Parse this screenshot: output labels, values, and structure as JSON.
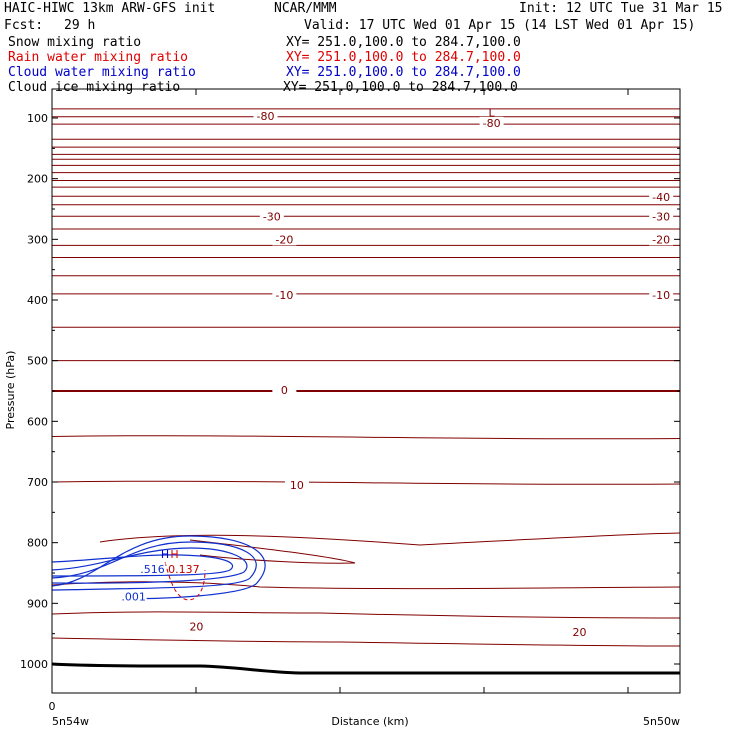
{
  "header": {
    "model": "HAIC-HIWC 13km ARW-GFS init",
    "org": "NCAR/MMM",
    "init": "Init: 12 UTC Tue 31 Mar 15",
    "fcst_label": "Fcst:",
    "fcst_value": "29 h",
    "valid": "Valid: 17 UTC Wed 01 Apr 15 (14 LST Wed 01 Apr 15)"
  },
  "fields": [
    {
      "name": "Snow mixing ratio",
      "xy": "XY= 251.0,100.0 to 284.7,100.0",
      "color": "#000000"
    },
    {
      "name": "Rain water mixing ratio",
      "xy": "XY= 251.0,100.0 to 284.7,100.0",
      "color": "#e00000"
    },
    {
      "name": "Cloud water mixing ratio",
      "xy": "XY= 251.0,100.0 to 284.7,100.0",
      "color": "#0000c8"
    },
    {
      "name": "Cloud ice mixing ratio",
      "xy": "XY= 251.0,100.0 to 284.7,100.0",
      "color": "#000000"
    }
  ],
  "chart_data": {
    "type": "contour",
    "ylabel": "Pressure (hPa)",
    "xlabel": "Distance (km)",
    "y_ticks": [
      100,
      200,
      300,
      400,
      500,
      600,
      700,
      800,
      900,
      1000
    ],
    "ylim": [
      1050,
      50
    ],
    "x_start_tick": "0",
    "x_left_label": "5n54w",
    "x_right_label": "5n50w",
    "temperature_color": "#800000",
    "temperature_levels_hpa": [
      85,
      98,
      110,
      135,
      148,
      160,
      168,
      178,
      190,
      203,
      214,
      229,
      243,
      262,
      283,
      310,
      330,
      360,
      390,
      445,
      500,
      550,
      625,
      700
    ],
    "temperature_labels": [
      {
        "text": "-80",
        "p": 97,
        "x_frac": 0.34
      },
      {
        "text": "-80",
        "p": 108,
        "x_frac": 0.7
      },
      {
        "text": "-40",
        "p": 230,
        "x_frac": 0.97
      },
      {
        "text": "-30",
        "p": 262,
        "x_frac": 0.35
      },
      {
        "text": "-30",
        "p": 262,
        "x_frac": 0.97
      },
      {
        "text": "-20",
        "p": 300,
        "x_frac": 0.37
      },
      {
        "text": "-20",
        "p": 300,
        "x_frac": 0.97
      },
      {
        "text": "-10",
        "p": 392,
        "x_frac": 0.37
      },
      {
        "text": "-10",
        "p": 392,
        "x_frac": 0.97
      },
      {
        "text": "0",
        "p": 548,
        "x_frac": 0.37
      },
      {
        "text": "10",
        "p": 705,
        "x_frac": 0.39
      },
      {
        "text": "20",
        "p": 938,
        "x_frac": 0.23
      },
      {
        "text": "20",
        "p": 947,
        "x_frac": 0.84
      }
    ],
    "markers": [
      {
        "text": "L",
        "p": 91,
        "x_frac": 0.7,
        "color": "#800000"
      },
      {
        "text": "H",
        "p": 819,
        "x_frac": 0.18,
        "color": "#0000c8"
      },
      {
        "text": "H",
        "p": 819,
        "x_frac": 0.195,
        "color": "#e00000"
      }
    ],
    "cloud_water_labels": [
      {
        "text": ".001",
        "p": 889,
        "x_frac": 0.13
      },
      {
        "text": ".516",
        "p": 843,
        "x_frac": 0.16
      }
    ],
    "rain_labels": [
      {
        "text": "0.137",
        "p": 843,
        "x_frac": 0.21
      }
    ],
    "surface_color": "#000000"
  }
}
